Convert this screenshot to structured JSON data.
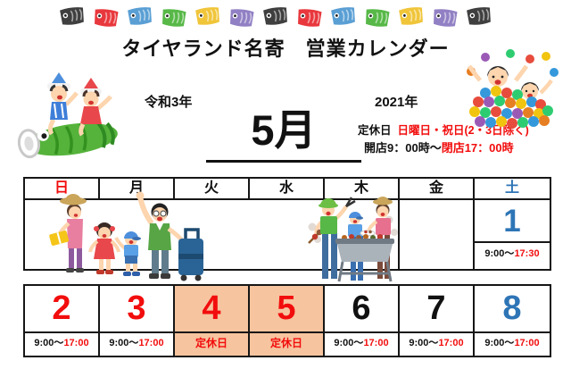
{
  "title": "タイヤランド名寄　営業カレンダー",
  "era_year": "令和3年",
  "year": "2021年",
  "month": "5月",
  "notice": {
    "closed_label": "定休日",
    "closed_days": "日曜日・祝日(2・3日除く)",
    "hours_open": "開店9：00時～",
    "hours_close": "閉店17：00時"
  },
  "weekdays": [
    {
      "label": "日",
      "color": "#f20d0d"
    },
    {
      "label": "月",
      "color": "#111111"
    },
    {
      "label": "火",
      "color": "#111111"
    },
    {
      "label": "水",
      "color": "#111111"
    },
    {
      "label": "木",
      "color": "#111111"
    },
    {
      "label": "金",
      "color": "#111111"
    },
    {
      "label": "土",
      "color": "#2e75b6"
    }
  ],
  "week1": {
    "day1": {
      "num": "1",
      "color": "#2e75b6",
      "time_start": "9:00～",
      "time_end": "17:30"
    }
  },
  "week2": [
    {
      "num": "2",
      "color": "#f20d0d",
      "closed": false,
      "time_start": "9:00～",
      "time_end": "17:00"
    },
    {
      "num": "3",
      "color": "#f20d0d",
      "closed": false,
      "time_start": "9:00～",
      "time_end": "17:00"
    },
    {
      "num": "4",
      "color": "#f20d0d",
      "closed": true,
      "closed_text": "定休日"
    },
    {
      "num": "5",
      "color": "#f20d0d",
      "closed": true,
      "closed_text": "定休日"
    },
    {
      "num": "6",
      "color": "#111111",
      "closed": false,
      "time_start": "9:00～",
      "time_end": "17:00"
    },
    {
      "num": "7",
      "color": "#111111",
      "closed": false,
      "time_start": "9:00～",
      "time_end": "17:00"
    },
    {
      "num": "8",
      "color": "#2e75b6",
      "closed": false,
      "time_start": "9:00～",
      "time_end": "17:00"
    }
  ],
  "banner_flag_colors": [
    "#3f3f3f",
    "#e8383d",
    "#5a9fd4",
    "#57b847",
    "#f0c53a",
    "#9180c4",
    "#3f3f3f",
    "#e8383d",
    "#5a9fd4",
    "#57b847",
    "#f0c53a",
    "#9180c4",
    "#3f3f3f"
  ],
  "colors": {
    "holiday_bg": "#f6c49f",
    "red": "#f20d0d",
    "saturday_blue": "#2e75b6",
    "border": "#161616"
  },
  "illustrations": {
    "top_left": "kids riding green koinobori carp streamer",
    "top_right": "kids playing in colorful ball pit",
    "week1_left": "family traveling with suitcase",
    "week1_center": "family barbecue at grill"
  }
}
